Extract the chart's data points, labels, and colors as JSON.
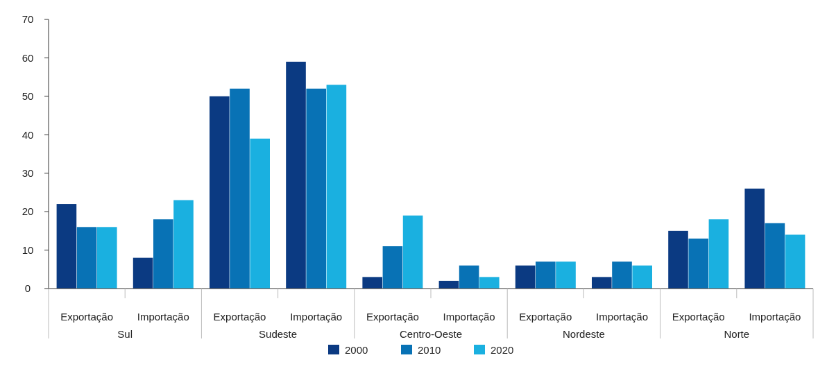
{
  "chart_data": {
    "type": "bar",
    "categories": [
      "Exportação",
      "Importação",
      "Exportação",
      "Importação",
      "Exportação",
      "Importação",
      "Exportação",
      "Importação",
      "Exportação",
      "Importação"
    ],
    "annotations": [
      "Sul",
      "Sudeste",
      "Centro-Oeste",
      "Nordeste",
      "Norte"
    ],
    "series": [
      {
        "name": "2000",
        "color": "#0b3a82",
        "values": [
          22,
          8,
          50,
          59,
          3,
          2,
          6,
          3,
          15,
          26
        ]
      },
      {
        "name": "2010",
        "color": "#0872b5",
        "values": [
          16,
          18,
          52,
          52,
          11,
          6,
          7,
          7,
          13,
          17
        ]
      },
      {
        "name": "2020",
        "color": "#1ab0e0",
        "values": [
          16,
          23,
          39,
          53,
          19,
          3,
          7,
          6,
          18,
          14
        ]
      }
    ],
    "ylim": [
      0,
      70
    ],
    "yticks": [
      0,
      10,
      20,
      30,
      40,
      50,
      60,
      70
    ],
    "legend": "bottom"
  }
}
